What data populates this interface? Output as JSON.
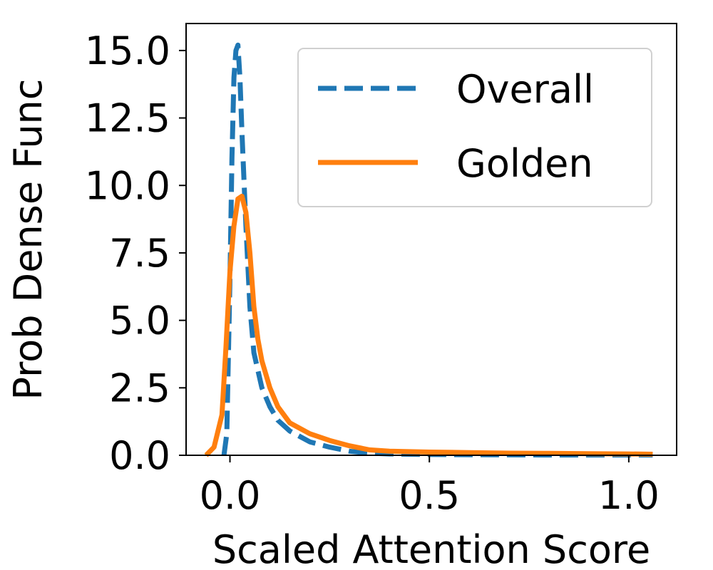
{
  "chart_data": {
    "type": "line",
    "xlabel": "Scaled Attention Score",
    "ylabel": "Prob Dense Func",
    "xlim": [
      -0.11,
      1.12
    ],
    "ylim": [
      0.0,
      16.0
    ],
    "xticks": [
      0.0,
      0.5,
      1.0
    ],
    "xtick_labels": [
      "0.0",
      "0.5",
      "1.0"
    ],
    "yticks": [
      0.0,
      2.5,
      5.0,
      7.5,
      10.0,
      12.5,
      15.0
    ],
    "ytick_labels": [
      "0.0",
      "2.5",
      "5.0",
      "7.5",
      "10.0",
      "12.5",
      "15.0"
    ],
    "grid": false,
    "legend_position": "top-right",
    "series": [
      {
        "name": "Overall",
        "color": "#1f77b4",
        "style": "dashed",
        "x": [
          -0.015,
          -0.008,
          0.0,
          0.005,
          0.01,
          0.015,
          0.02,
          0.025,
          0.03,
          0.04,
          0.05,
          0.06,
          0.08,
          0.1,
          0.12,
          0.15,
          0.2,
          0.25,
          0.3,
          0.35,
          0.4,
          0.5,
          0.6,
          0.8,
          1.0,
          1.06
        ],
        "y": [
          0.0,
          0.8,
          6.5,
          11.0,
          14.0,
          15.0,
          15.2,
          14.0,
          12.0,
          8.5,
          5.5,
          3.8,
          2.5,
          1.8,
          1.3,
          0.9,
          0.5,
          0.3,
          0.15,
          0.08,
          0.05,
          0.03,
          0.02,
          0.01,
          0.01,
          0.01
        ]
      },
      {
        "name": "Golden",
        "color": "#ff7f0e",
        "style": "solid",
        "x": [
          -0.06,
          -0.04,
          -0.02,
          -0.01,
          0.0,
          0.01,
          0.02,
          0.03,
          0.04,
          0.05,
          0.06,
          0.07,
          0.08,
          0.1,
          0.12,
          0.15,
          0.2,
          0.25,
          0.3,
          0.35,
          0.4,
          0.5,
          0.6,
          0.7,
          0.8,
          0.9,
          1.0,
          1.06
        ],
        "y": [
          0.0,
          0.3,
          1.5,
          4.0,
          6.8,
          8.5,
          9.5,
          9.6,
          9.0,
          7.5,
          5.5,
          4.3,
          3.5,
          2.5,
          1.8,
          1.2,
          0.8,
          0.55,
          0.35,
          0.2,
          0.15,
          0.12,
          0.1,
          0.08,
          0.07,
          0.06,
          0.05,
          0.04
        ]
      }
    ]
  }
}
